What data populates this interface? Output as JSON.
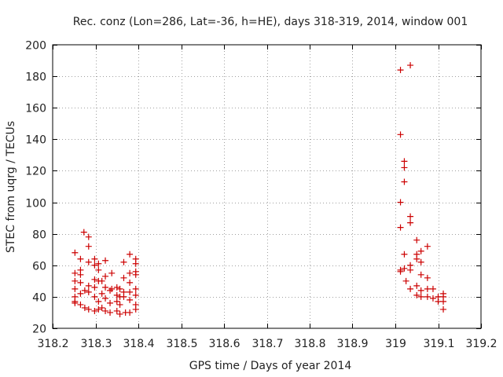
{
  "chart_data": {
    "type": "scatter",
    "title": "Rec. conz (Lon=286, Lat=-36, h=HE), days 318-319, 2014, window 001",
    "xlabel": "GPS time / Days of year 2014",
    "ylabel": "STEC from uqrg / TECUs",
    "xlim": [
      318.2,
      319.2
    ],
    "ylim": [
      20,
      200
    ],
    "xticks": [
      318.2,
      318.3,
      318.4,
      318.5,
      318.6,
      318.7,
      318.8,
      318.9,
      319,
      319.1,
      319.2
    ],
    "xtick_labels": [
      "318.2",
      "318.3",
      "318.4",
      "318.5",
      "318.6",
      "318.7",
      "318.8",
      "318.9",
      "319",
      "319.1",
      "319.2"
    ],
    "yticks": [
      20,
      40,
      60,
      80,
      100,
      120,
      140,
      160,
      180,
      200
    ],
    "ytick_labels": [
      "20",
      "40",
      "60",
      "80",
      "100",
      "120",
      "140",
      "160",
      "180",
      "200"
    ],
    "grid": true,
    "marker": "+",
    "color": "#cc0000",
    "series": [
      {
        "name": "STEC",
        "points": [
          [
            318.252,
            68
          ],
          [
            318.252,
            55
          ],
          [
            318.252,
            50
          ],
          [
            318.252,
            45
          ],
          [
            318.252,
            40
          ],
          [
            318.252,
            37
          ],
          [
            318.252,
            36
          ],
          [
            318.265,
            64
          ],
          [
            318.265,
            57
          ],
          [
            318.265,
            54
          ],
          [
            318.265,
            49
          ],
          [
            318.265,
            42
          ],
          [
            318.265,
            35
          ],
          [
            318.273,
            81
          ],
          [
            318.275,
            44
          ],
          [
            318.275,
            33
          ],
          [
            318.284,
            78
          ],
          [
            318.284,
            72
          ],
          [
            318.284,
            62
          ],
          [
            318.284,
            47
          ],
          [
            318.284,
            43
          ],
          [
            318.284,
            32
          ],
          [
            318.298,
            64
          ],
          [
            318.298,
            60
          ],
          [
            318.298,
            51
          ],
          [
            318.298,
            46
          ],
          [
            318.298,
            40
          ],
          [
            318.298,
            31
          ],
          [
            318.307,
            61
          ],
          [
            318.307,
            57
          ],
          [
            318.307,
            50
          ],
          [
            318.307,
            37
          ],
          [
            318.307,
            32
          ],
          [
            318.315,
            50
          ],
          [
            318.315,
            42
          ],
          [
            318.315,
            33
          ],
          [
            318.323,
            63
          ],
          [
            318.323,
            53
          ],
          [
            318.323,
            46
          ],
          [
            318.323,
            39
          ],
          [
            318.323,
            31
          ],
          [
            318.334,
            44
          ],
          [
            318.334,
            36
          ],
          [
            318.334,
            30
          ],
          [
            318.338,
            55
          ],
          [
            318.338,
            45
          ],
          [
            318.35,
            46
          ],
          [
            318.35,
            41
          ],
          [
            318.35,
            37
          ],
          [
            318.35,
            31
          ],
          [
            318.357,
            45
          ],
          [
            318.357,
            40
          ],
          [
            318.357,
            35
          ],
          [
            318.357,
            29
          ],
          [
            318.366,
            62
          ],
          [
            318.366,
            52
          ],
          [
            318.366,
            43
          ],
          [
            318.366,
            40
          ],
          [
            318.37,
            30
          ],
          [
            318.38,
            67
          ],
          [
            318.38,
            55
          ],
          [
            318.38,
            49
          ],
          [
            318.38,
            43
          ],
          [
            318.38,
            38
          ],
          [
            318.38,
            30
          ],
          [
            318.394,
            64
          ],
          [
            318.394,
            61
          ],
          [
            318.394,
            56
          ],
          [
            318.394,
            54
          ],
          [
            318.394,
            45
          ],
          [
            318.394,
            41
          ],
          [
            318.394,
            35
          ],
          [
            318.394,
            32
          ],
          [
            319.012,
            184
          ],
          [
            319.012,
            143
          ],
          [
            319.012,
            100
          ],
          [
            319.012,
            84
          ],
          [
            319.012,
            57
          ],
          [
            319.012,
            56
          ],
          [
            319.021,
            126
          ],
          [
            319.021,
            122
          ],
          [
            319.021,
            113
          ],
          [
            319.021,
            67
          ],
          [
            319.021,
            58
          ],
          [
            319.025,
            50
          ],
          [
            319.035,
            187
          ],
          [
            319.035,
            91
          ],
          [
            319.035,
            87
          ],
          [
            319.035,
            60
          ],
          [
            319.035,
            57
          ],
          [
            319.035,
            45
          ],
          [
            319.05,
            76
          ],
          [
            319.05,
            67
          ],
          [
            319.05,
            64
          ],
          [
            319.05,
            47
          ],
          [
            319.05,
            41
          ],
          [
            319.06,
            69
          ],
          [
            319.06,
            62
          ],
          [
            319.06,
            54
          ],
          [
            319.06,
            44
          ],
          [
            319.06,
            40
          ],
          [
            319.075,
            72
          ],
          [
            319.075,
            52
          ],
          [
            319.075,
            45
          ],
          [
            319.075,
            40
          ],
          [
            319.088,
            45
          ],
          [
            319.088,
            39
          ],
          [
            319.1,
            40
          ],
          [
            319.1,
            37
          ],
          [
            319.112,
            42
          ],
          [
            319.112,
            40
          ],
          [
            319.112,
            37
          ],
          [
            319.112,
            32
          ]
        ]
      }
    ]
  }
}
